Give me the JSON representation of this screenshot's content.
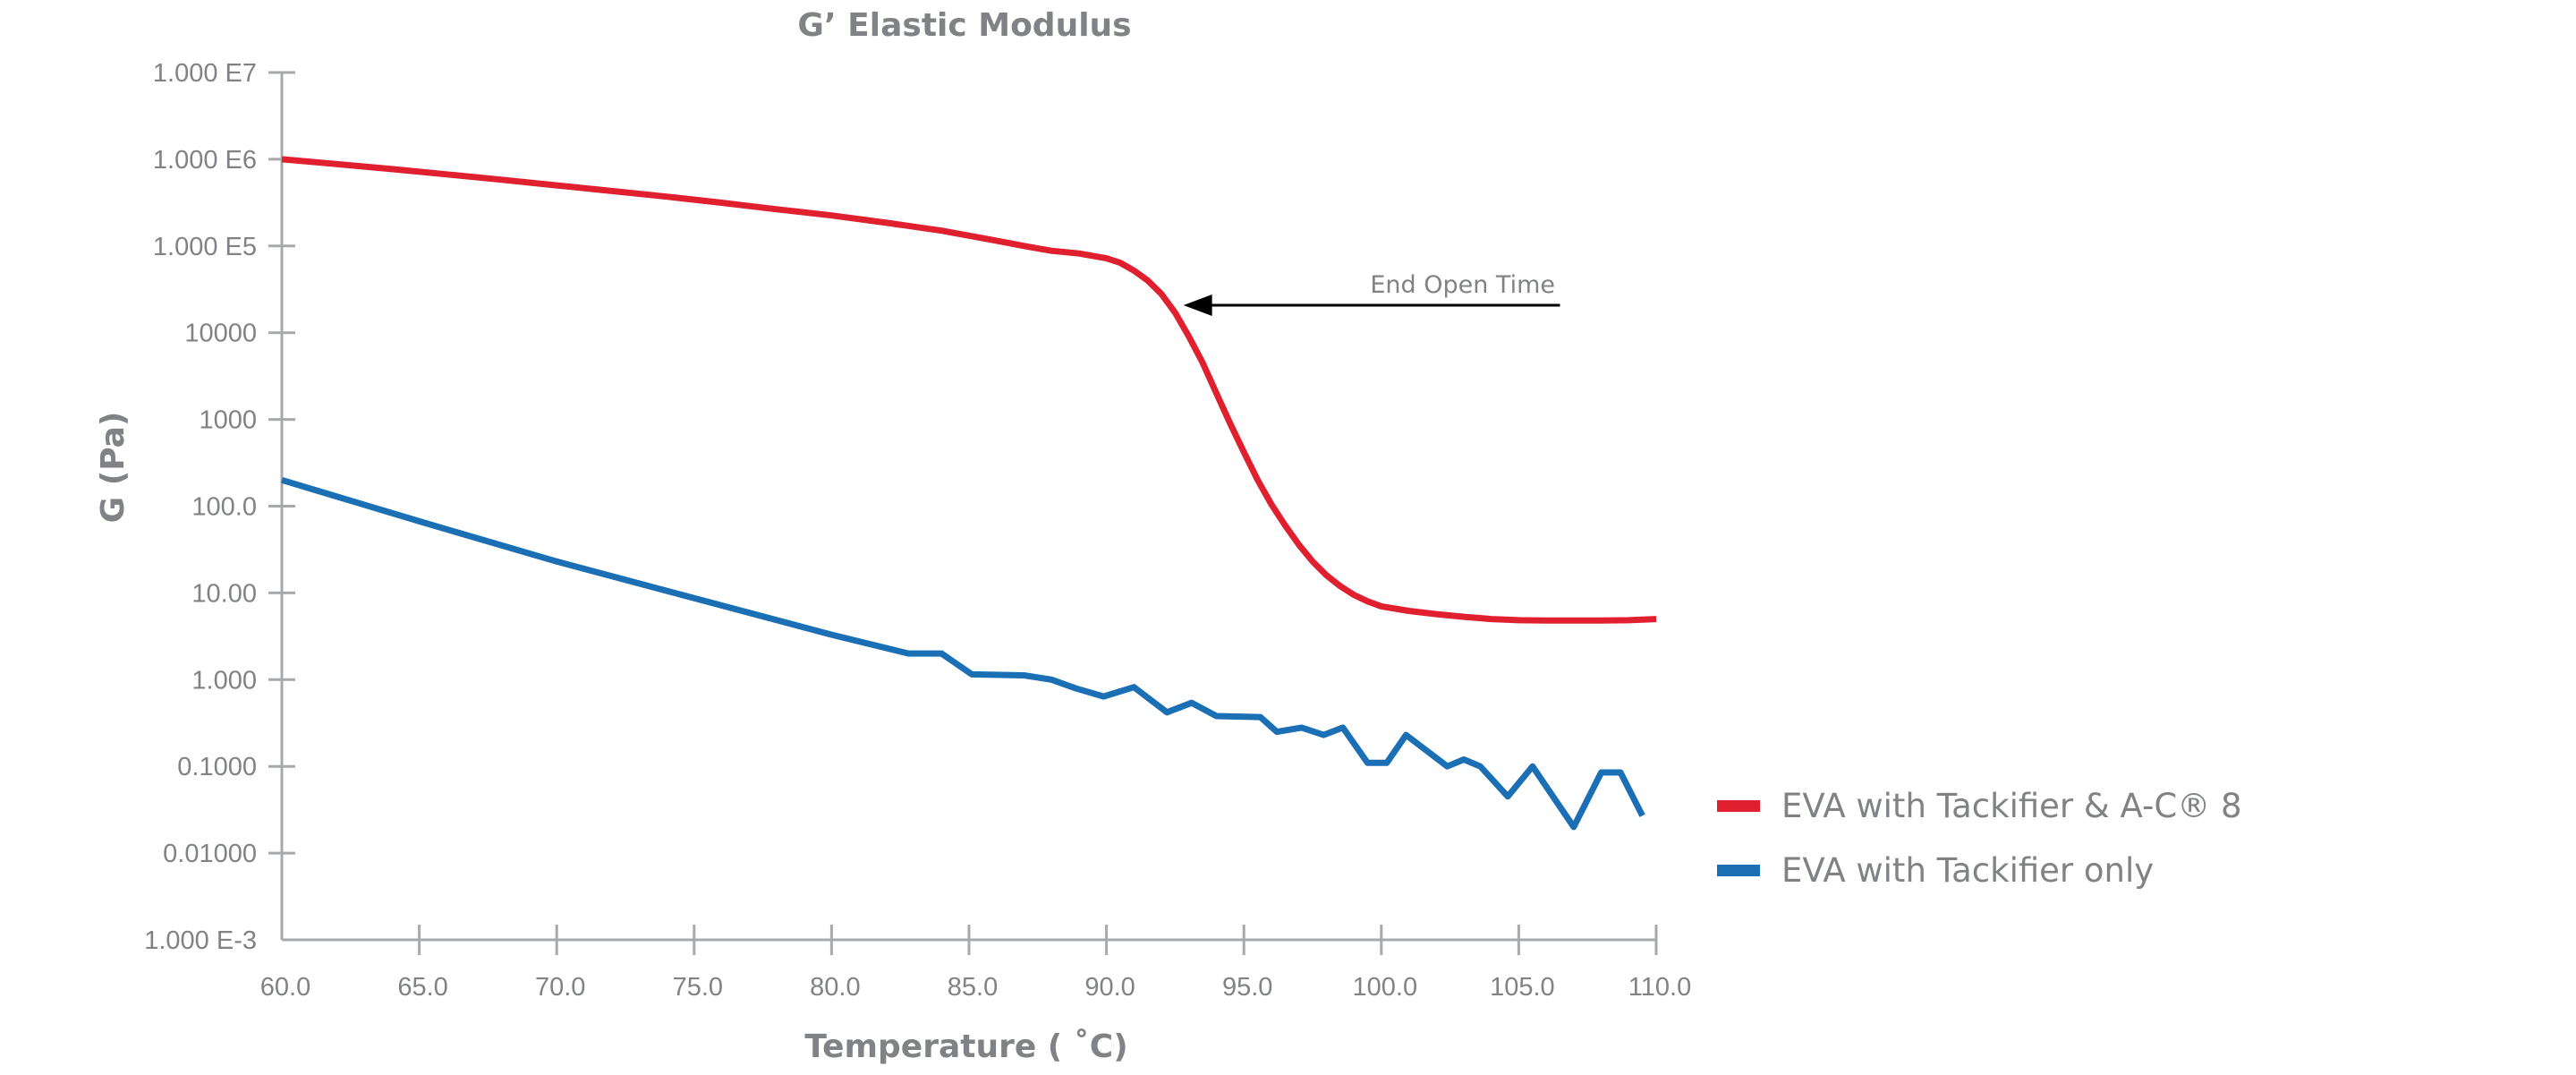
{
  "colors": {
    "series_red": "#e0202e",
    "series_blue": "#1a6fb5",
    "axis": "#a7a9ac",
    "text": "#808285",
    "arrow": "#000000"
  },
  "chart_data": {
    "type": "line",
    "title": "G’ Elastic Modulus",
    "xlabel": "Temperature ( ˚C)",
    "ylabel": "G (Pa)",
    "yscale": "log",
    "xlim": [
      60,
      110
    ],
    "ylim": [
      0.001,
      10000000
    ],
    "grid": false,
    "legend_position": "right",
    "x_ticks": [
      60,
      65,
      70,
      75,
      80,
      85,
      90,
      95,
      100,
      105,
      110
    ],
    "x_tick_labels": [
      "60.0",
      "65.0",
      "70.0",
      "75.0",
      "80.0",
      "85.0",
      "90.0",
      "95.0",
      "100.0",
      "105.0",
      "110.0"
    ],
    "y_ticks": [
      10000000,
      1000000,
      100000,
      10000,
      1000,
      100,
      10,
      1,
      0.1,
      0.01,
      0.001
    ],
    "y_tick_labels": [
      "1.000 E7",
      "1.000 E6",
      "1.000 E5",
      "10000",
      "1000",
      "100.0",
      "10.00",
      "1.000",
      "0.1000",
      "0.01000",
      "1.000 E-3"
    ],
    "annotations": [
      {
        "text": "End Open Time",
        "arrow_to_x": 92.8,
        "arrow_to_y": 20000,
        "arrow_from_x": 106.5
      }
    ],
    "series": [
      {
        "name": "EVA with Tackifier & A-C® 8",
        "color": "#e0202e",
        "x": [
          60,
          62,
          64,
          66,
          68,
          70,
          72,
          74,
          76,
          78,
          80,
          82,
          84,
          86,
          87,
          88,
          89,
          90,
          90.5,
          91,
          91.5,
          92,
          92.5,
          93,
          93.5,
          94,
          94.5,
          95,
          95.5,
          96,
          96.5,
          97,
          97.5,
          98,
          98.5,
          99,
          99.5,
          100,
          101,
          102,
          103,
          104,
          105,
          106,
          107,
          108,
          109,
          110
        ],
        "y": [
          1000000,
          880000,
          770000,
          670000,
          580000,
          500000,
          430000,
          370000,
          315000,
          265000,
          225000,
          185000,
          150000,
          115000,
          100000,
          88000,
          82000,
          72000,
          64000,
          52000,
          40000,
          28000,
          17000,
          9000,
          4500,
          2000,
          900,
          420,
          200,
          105,
          60,
          36,
          23,
          16,
          12,
          9.5,
          8,
          7,
          6.2,
          5.7,
          5.3,
          5.0,
          4.85,
          4.8,
          4.8,
          4.8,
          4.85,
          5.0
        ]
      },
      {
        "name": "EVA with Tackifier only",
        "color": "#1a6fb5",
        "x": [
          60,
          65,
          70,
          75,
          80,
          82.8,
          84,
          85.1,
          87,
          88,
          88.9,
          89.9,
          91,
          92.2,
          93.1,
          94,
          95.6,
          96.2,
          97.1,
          97.9,
          98.6,
          99.5,
          100.2,
          100.9,
          102.4,
          103,
          103.6,
          104.6,
          105.5,
          107,
          108,
          108.7,
          109.5
        ],
        "y": [
          200,
          67,
          23,
          8.7,
          3.3,
          2.0,
          2.0,
          1.15,
          1.12,
          1.0,
          0.79,
          0.64,
          0.82,
          0.42,
          0.54,
          0.38,
          0.37,
          0.25,
          0.28,
          0.23,
          0.28,
          0.11,
          0.11,
          0.23,
          0.1,
          0.12,
          0.1,
          0.045,
          0.1,
          0.02,
          0.085,
          0.085,
          0.027
        ]
      }
    ]
  }
}
